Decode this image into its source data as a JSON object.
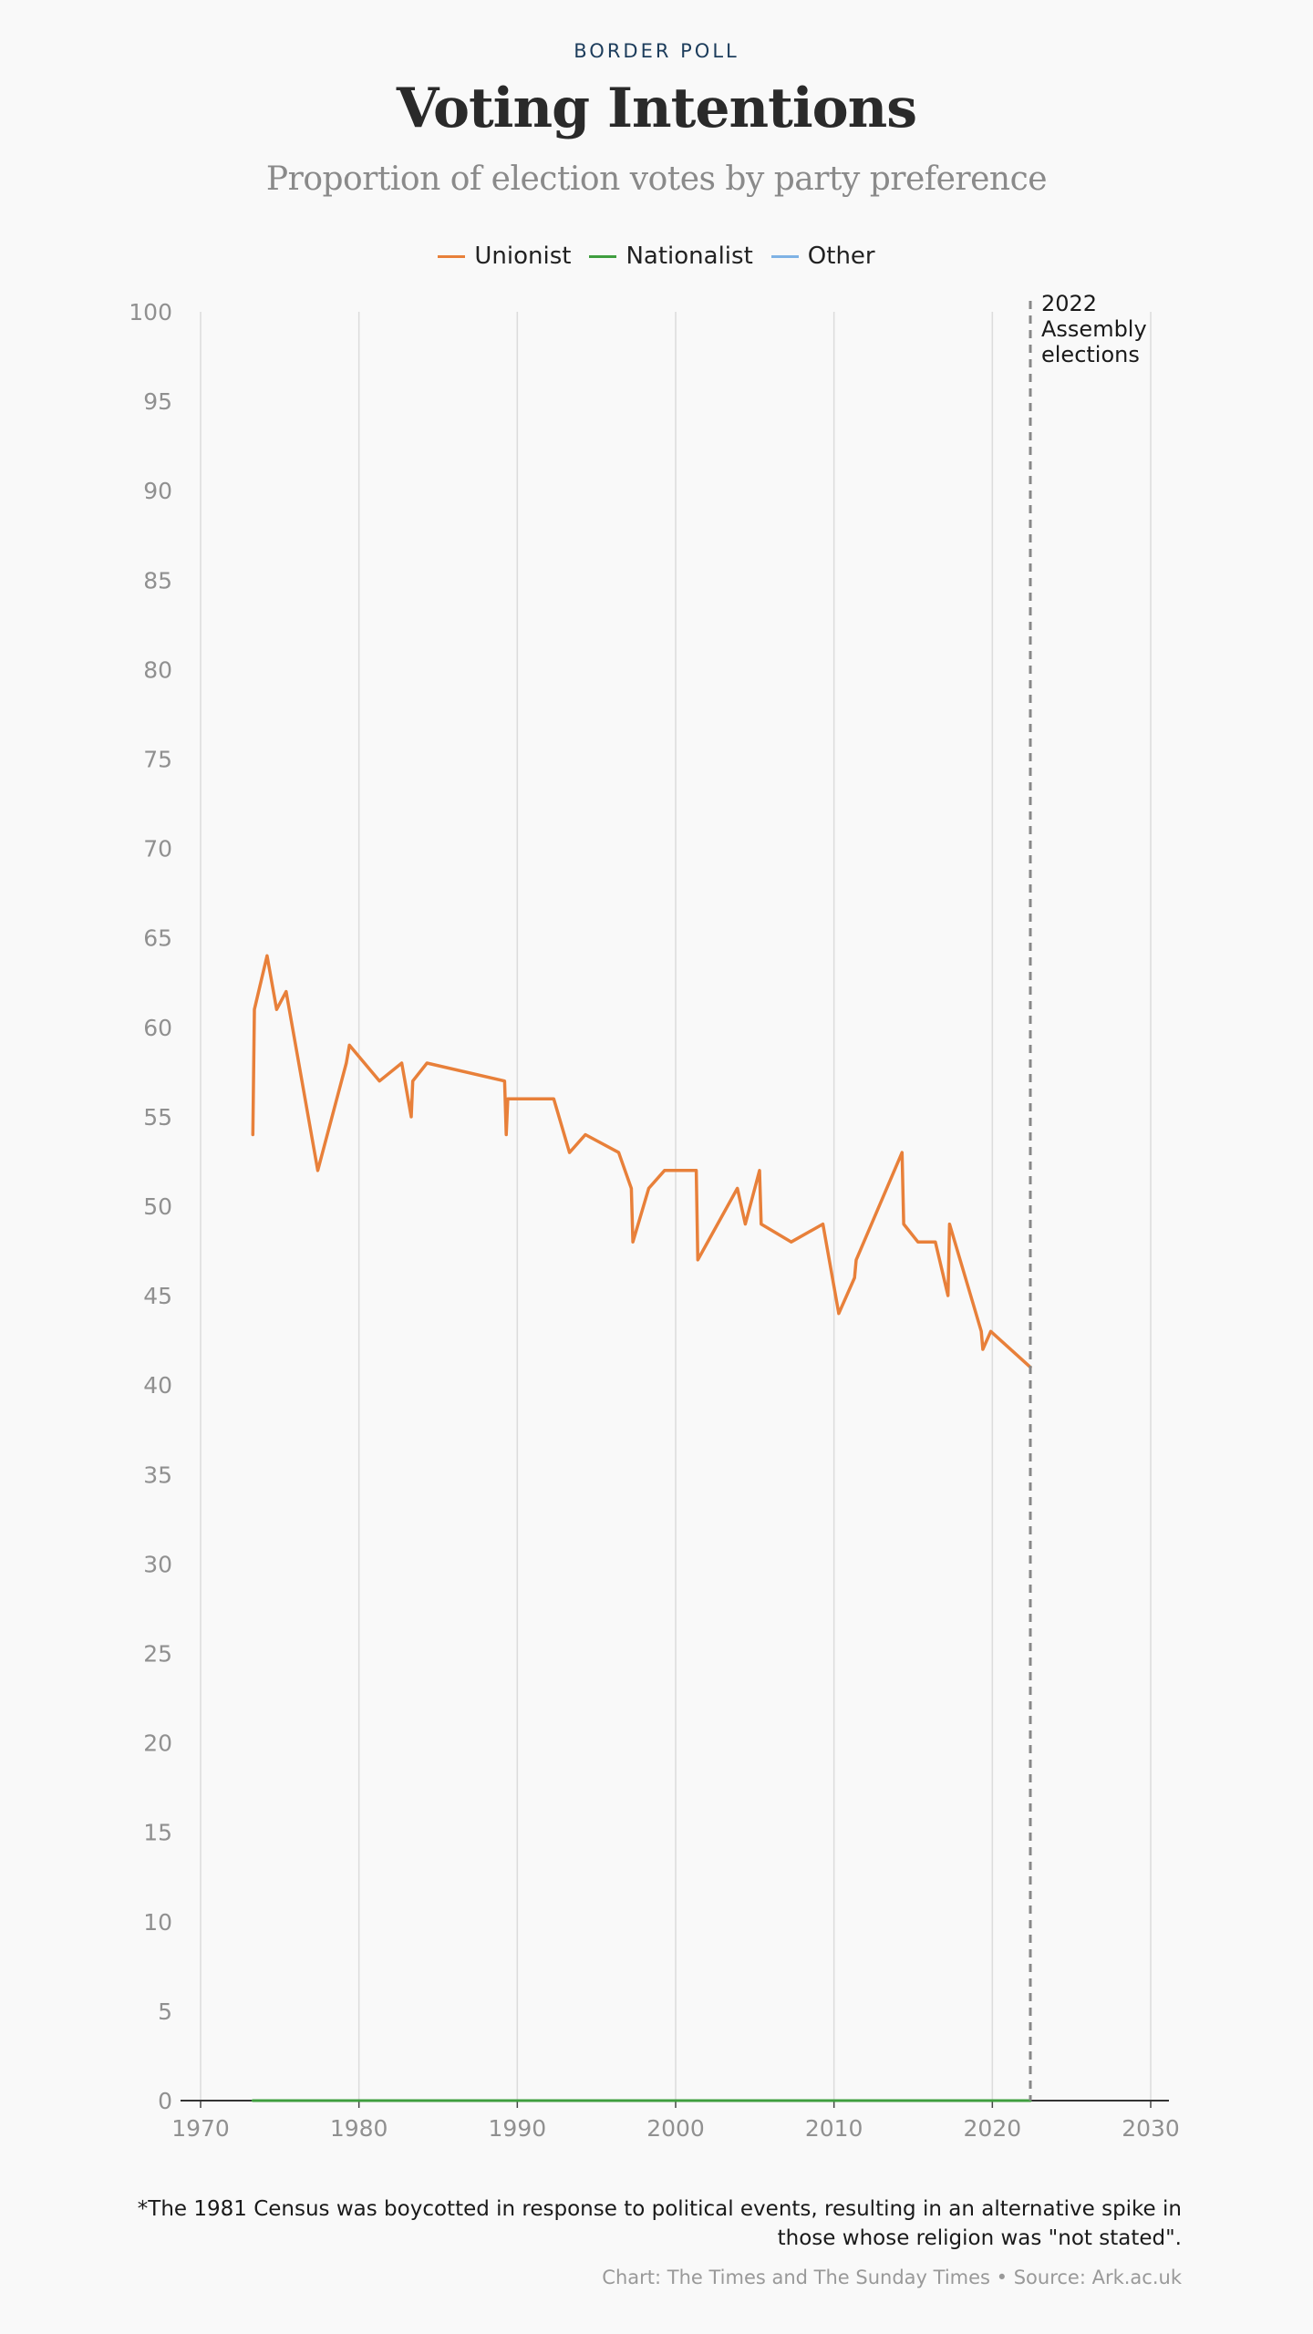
{
  "header": {
    "kicker": "BORDER POLL",
    "title": "Voting Intentions",
    "subtitle": "Proportion of election votes by party preference"
  },
  "legend": [
    {
      "label": "Unionist",
      "color": "#e8803a"
    },
    {
      "label": "Nationalist",
      "color": "#3f9e3f"
    },
    {
      "label": "Other",
      "color": "#7fb2e5"
    }
  ],
  "chart_data": {
    "type": "line",
    "title": "Voting Intentions",
    "subtitle": "Proportion of election votes by party preference",
    "xlim": [
      1970,
      2030
    ],
    "ylim": [
      0,
      100
    ],
    "x_ticks": [
      1970,
      1980,
      1990,
      2000,
      2010,
      2020,
      2030
    ],
    "y_ticks": [
      0,
      5,
      10,
      15,
      20,
      25,
      30,
      35,
      40,
      45,
      50,
      55,
      60,
      65,
      70,
      75,
      80,
      85,
      90,
      95,
      100
    ],
    "grid": "vertical",
    "legend_position": "top-center",
    "series": [
      {
        "name": "Unionist",
        "color": "#e8803a",
        "x": [
          1973.3,
          1973.4,
          1974.2,
          1974.8,
          1975.4,
          1977.4,
          1979.2,
          1979.4,
          1981.3,
          1982.7,
          1983.3,
          1983.4,
          1984.3,
          1989.2,
          1989.3,
          1989.4,
          1992.3,
          1993.3,
          1994.3,
          1996.4,
          1997.2,
          1997.3,
          1998.3,
          1999.3,
          2001.3,
          2001.4,
          2003.9,
          2004.4,
          2005.3,
          2005.4,
          2007.3,
          2009.3,
          2010.3,
          2011.3,
          2011.4,
          2014.3,
          2014.4,
          2015.3,
          2016.4,
          2017.2,
          2017.3,
          2019.3,
          2019.4,
          2019.9,
          2022.4
        ],
        "y": [
          54,
          61,
          64,
          61,
          62,
          52,
          58,
          59,
          57,
          58,
          55,
          57,
          58,
          57,
          54,
          56,
          56,
          53,
          54,
          53,
          51,
          48,
          51,
          52,
          52,
          47,
          51,
          49,
          52,
          49,
          48,
          49,
          44,
          46,
          47,
          53,
          49,
          48,
          48,
          45,
          49,
          43,
          42,
          43,
          41
        ]
      },
      {
        "name": "Nationalist",
        "color": "#3f9e3f",
        "x": [
          1973.3,
          2022.4
        ],
        "y": [
          0,
          0
        ]
      }
    ],
    "annotations": [
      {
        "x": 2022.4,
        "lines": [
          "2022",
          "Assembly",
          "elections"
        ]
      }
    ]
  },
  "footer": {
    "footnote_line1": "*The 1981 Census was boycotted in response to political events, resulting in an alternative spike in",
    "footnote_line2": "those whose religion was \"not stated\".",
    "credit": "Chart: The Times and The Sunday Times • Source: Ark.ac.uk"
  }
}
